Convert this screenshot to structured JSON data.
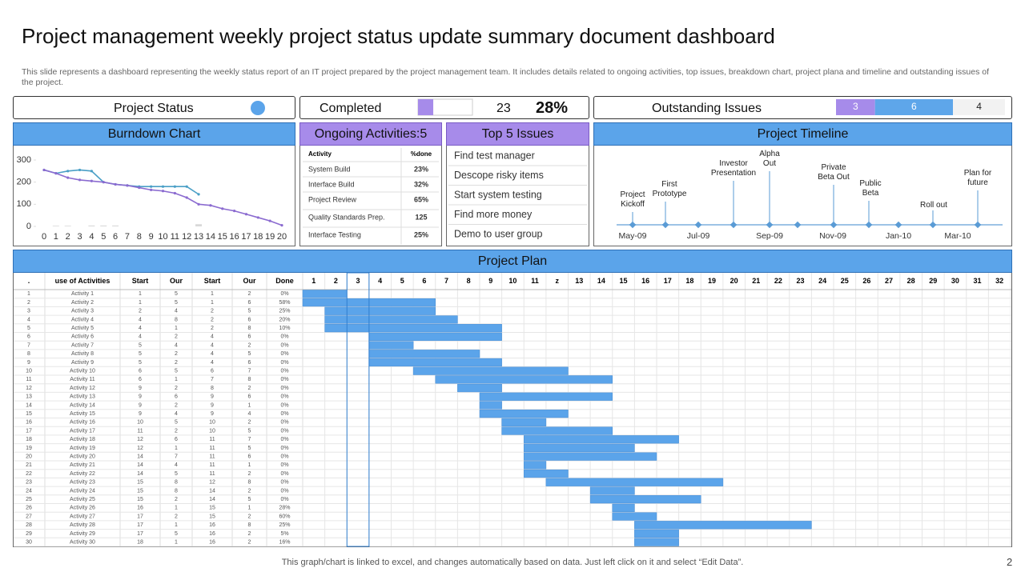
{
  "title": "Project management weekly project status update summary document dashboard",
  "description": "This slide represents a dashboard representing the weekly status report of an IT project prepared by the project management team. It includes details related to ongoing activities, top issues, breakdown chart, project plana and timeline and outstanding issues of the project.",
  "status": {
    "label": "Project Status"
  },
  "completed": {
    "label": "Completed",
    "count": 23,
    "progress": {
      "value": 28,
      "label": "28%"
    }
  },
  "outstanding": {
    "label": "Outstanding Issues",
    "segments": [
      {
        "value": 3,
        "color": "#a68bea"
      },
      {
        "value": 6,
        "color": "#5ea6ea"
      },
      {
        "value": 4,
        "color": "#f2f2f2"
      }
    ]
  },
  "chart_data": {
    "type": "line",
    "title": "Burndown Chart",
    "x": [
      0,
      1,
      2,
      3,
      4,
      5,
      6,
      7,
      8,
      9,
      10,
      11,
      12,
      13,
      14,
      15,
      16,
      17,
      18,
      19,
      20
    ],
    "xlim": [
      0,
      20
    ],
    "ylim": [
      0,
      300
    ],
    "yticks": [
      0,
      100,
      200,
      300
    ],
    "series": [
      {
        "color": "#4a9fc6",
        "values": [
          255,
          240,
          250,
          255,
          250,
          200,
          190,
          185,
          180,
          180,
          180,
          180,
          180,
          145,
          null,
          null,
          null,
          null,
          null,
          null,
          null
        ]
      },
      {
        "color": "#8b6bd0",
        "values": [
          255,
          240,
          220,
          210,
          205,
          200,
          190,
          185,
          175,
          165,
          160,
          150,
          130,
          100,
          95,
          80,
          70,
          55,
          40,
          25,
          5
        ]
      },
      {
        "type": "bar",
        "color": "#d9d9d9",
        "values": [
          0,
          3,
          3,
          0,
          4,
          4,
          4,
          0,
          0,
          0,
          0,
          0,
          0,
          10,
          0,
          0,
          0,
          0,
          0,
          0,
          0
        ]
      }
    ]
  },
  "activities": {
    "title": "Ongoing Activities:5",
    "header": [
      "Activity",
      "%done"
    ],
    "rows": [
      [
        "System Build",
        "23%"
      ],
      [
        "Interface Build",
        "32%"
      ],
      [
        "Project Review",
        "65%"
      ],
      [
        "Quality Standards Prep.",
        125
      ],
      [
        "Interface Testing",
        "25%"
      ]
    ]
  },
  "issues": {
    "title": "Top 5 Issues",
    "items": [
      "Find test manager",
      "Descope risky items",
      "Start system testing",
      "Find more money",
      "Demo to user group"
    ]
  },
  "timeline": {
    "title": "Project Timeline",
    "axis_labels": [
      "May-09",
      "Jul-09",
      "Sep-09",
      "Nov-09",
      "Jan-10",
      "Mar-10"
    ],
    "milestones": [
      "Project\nKickoff",
      "First\nPrototype",
      "Investor\nPresentation",
      "Alpha\nOut",
      "Private\nBeta Out",
      "Public\nBeta",
      "Roll out",
      "Plan  for\nfuture"
    ]
  },
  "plan": {
    "title": "Project Plan",
    "columns": [
      ".",
      "use of Activities",
      "Start",
      "Our",
      "Start",
      "Our",
      "Done"
    ],
    "weeks": [
      1,
      2,
      3,
      4,
      5,
      6,
      7,
      8,
      9,
      10,
      11,
      "z",
      13,
      14,
      15,
      16,
      17,
      18,
      19,
      20,
      21,
      22,
      23,
      24,
      25,
      26,
      27,
      28,
      29,
      30,
      31,
      32
    ],
    "rows": [
      [
        1,
        "Activity 1",
        1,
        5,
        1,
        2,
        "0%"
      ],
      [
        2,
        "Activity 2",
        1,
        5,
        1,
        6,
        "58%"
      ],
      [
        3,
        "Activity 3",
        2,
        4,
        2,
        5,
        "25%"
      ],
      [
        4,
        "Activity 4",
        4,
        8,
        2,
        6,
        "20%"
      ],
      [
        5,
        "Activity 5",
        4,
        1,
        2,
        8,
        "10%"
      ],
      [
        6,
        "Activity 6",
        4,
        2,
        4,
        6,
        "0%"
      ],
      [
        7,
        "Activity 7",
        5,
        4,
        4,
        2,
        "0%"
      ],
      [
        8,
        "Activity 8",
        5,
        2,
        4,
        5,
        "0%"
      ],
      [
        9,
        "Activity 9",
        5,
        2,
        4,
        6,
        "0%"
      ],
      [
        10,
        "Activity 10",
        6,
        5,
        6,
        7,
        "0%"
      ],
      [
        11,
        "Activity 11",
        6,
        1,
        7,
        8,
        "0%"
      ],
      [
        12,
        "Activity 12",
        9,
        2,
        8,
        2,
        "0%"
      ],
      [
        13,
        "Activity 13",
        9,
        6,
        9,
        6,
        "0%"
      ],
      [
        14,
        "Activity 14",
        9,
        2,
        9,
        1,
        "0%"
      ],
      [
        15,
        "Activity 15",
        9,
        4,
        9,
        4,
        "0%"
      ],
      [
        16,
        "Activity 16",
        10,
        5,
        10,
        2,
        "0%"
      ],
      [
        17,
        "Activity 17",
        11,
        2,
        10,
        5,
        "0%"
      ],
      [
        18,
        "Activity 18",
        12,
        6,
        11,
        7,
        "0%"
      ],
      [
        19,
        "Activity 19",
        12,
        1,
        11,
        5,
        "0%"
      ],
      [
        20,
        "Activity 20",
        14,
        7,
        11,
        6,
        "0%"
      ],
      [
        21,
        "Activity 21",
        14,
        4,
        11,
        1,
        "0%"
      ],
      [
        22,
        "Activity 22",
        14,
        5,
        11,
        2,
        "0%"
      ],
      [
        23,
        "Activity 23",
        15,
        8,
        12,
        8,
        "0%"
      ],
      [
        24,
        "Activity 24",
        15,
        8,
        14,
        2,
        "0%"
      ],
      [
        25,
        "Activity 25",
        15,
        2,
        14,
        5,
        "0%"
      ],
      [
        26,
        "Activity 26",
        16,
        1,
        15,
        1,
        "28%"
      ],
      [
        27,
        "Activity 27",
        17,
        2,
        15,
        2,
        "60%"
      ],
      [
        28,
        "Activity 28",
        17,
        1,
        16,
        8,
        "25%"
      ],
      [
        29,
        "Activity 29",
        17,
        5,
        16,
        2,
        "5%"
      ],
      [
        30,
        "Activity 30",
        18,
        1,
        16,
        2,
        "16%"
      ]
    ]
  },
  "footer": "This graph/chart is linked to excel,  and changes automatically based on data. Just left click on it and select “Edit Data”.",
  "page_number": 2
}
